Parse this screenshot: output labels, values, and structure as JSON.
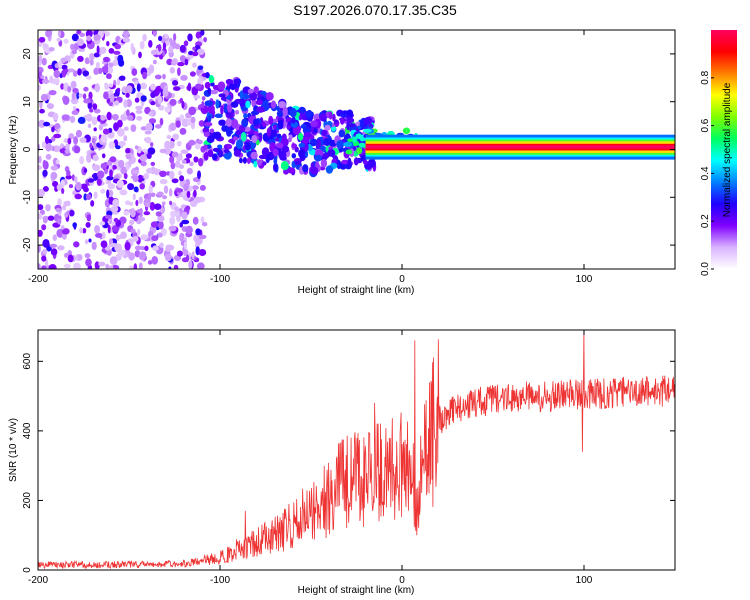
{
  "title": "S197.2026.070.17.35.C35",
  "chart_data": [
    {
      "type": "heatmap",
      "title": "S197.2026.070.17.35.C35",
      "xlabel": "Height of straight line (km)",
      "ylabel": "Frequency (Hz)",
      "xlim": [
        -200,
        150
      ],
      "ylim": [
        -25,
        25
      ],
      "xticks": [
        -200,
        -100,
        0,
        100
      ],
      "yticks": [
        -20,
        -10,
        0,
        10,
        20
      ],
      "colorbar": {
        "label": "Normalized spectral amplitude",
        "range": [
          0.0,
          1.0
        ],
        "ticks": [
          0.0,
          0.2,
          0.4,
          0.6,
          0.8
        ],
        "tick_labels": [
          "0.0",
          "0.2",
          "0.4",
          "0.6",
          "0.8"
        ],
        "colormap": [
          "#ffffff",
          "#d9b3ff",
          "#8000ff",
          "#2000ff",
          "#0080ff",
          "#00ffff",
          "#00ff60",
          "#80ff00",
          "#ffff00",
          "#ff8000",
          "#ff0000",
          "#ff0060"
        ]
      },
      "features": {
        "noise_region_x": [
          -200,
          -108
        ],
        "noise_region_y": [
          -25,
          25
        ],
        "diagonal_band": [
          [
            -108,
            7
          ],
          [
            -90,
            6
          ],
          [
            -75,
            4
          ],
          [
            -60,
            2
          ],
          [
            -45,
            1
          ],
          [
            -35,
            2
          ],
          [
            -25,
            2
          ],
          [
            -15,
            1
          ]
        ],
        "signal_line_x": [
          -20,
          150
        ],
        "signal_line_freq": 0.5,
        "signal_line_amplitude": 1.0
      }
    },
    {
      "type": "line",
      "title": "",
      "xlabel": "Height of straight line (km)",
      "ylabel": "SNR (10 * v/v)",
      "xlim": [
        -200,
        150
      ],
      "ylim": [
        0,
        690
      ],
      "xticks": [
        -200,
        -100,
        0,
        100
      ],
      "yticks": [
        0,
        200,
        400,
        600
      ],
      "color": "#ee3333",
      "series": [
        {
          "name": "SNR",
          "x": [
            -200,
            -150,
            -120,
            -100,
            -90,
            -80,
            -70,
            -60,
            -50,
            -40,
            -30,
            -20,
            -15,
            -10,
            -5,
            0,
            5,
            8,
            10,
            15,
            20,
            30,
            40,
            50,
            60,
            80,
            100,
            120,
            150
          ],
          "y": [
            15,
            15,
            18,
            35,
            60,
            80,
            100,
            130,
            170,
            210,
            260,
            250,
            300,
            260,
            290,
            320,
            300,
            200,
            260,
            370,
            430,
            460,
            480,
            490,
            495,
            500,
            505,
            510,
            515
          ],
          "spikes": [
            [
              -15,
              480
            ],
            [
              7,
              660
            ],
            [
              8,
              100
            ],
            [
              100,
              690
            ],
            [
              99,
              340
            ],
            [
              -86,
              170
            ]
          ]
        }
      ]
    }
  ]
}
